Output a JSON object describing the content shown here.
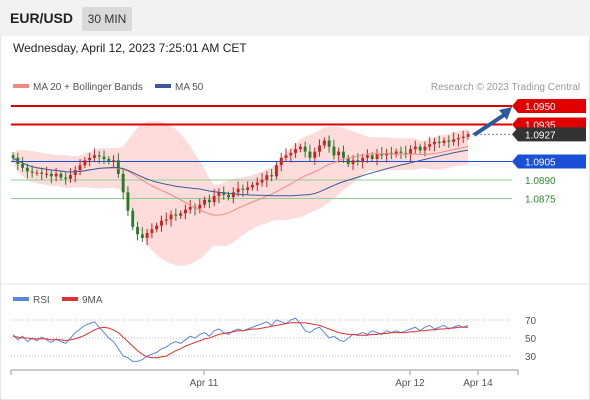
{
  "header": {
    "pair": "EUR/USD",
    "timeframe": "30 MIN"
  },
  "datetime": "Wednesday, April 12, 2023 7:25:01 AM CET",
  "legend": {
    "ma20_label": "MA 20 + Bollinger Bands",
    "ma50_label": "MA 50",
    "credit": "Research © 2023 Trading Central"
  },
  "rsi_legend": {
    "rsi_label": "RSI",
    "ma_label": "9MA"
  },
  "colors": {
    "resistance": "#e00000",
    "support": "#1a4fd6",
    "target": "#2f8a2f",
    "up": "#d02020",
    "down": "#2a7a2a",
    "ma20": "#f08a80",
    "ma50": "#3a5a9a",
    "band": "#ffd0d0",
    "rsi": "#5a86e0",
    "rsi_ma": "#e03030",
    "arrow": "#2c5aa0",
    "current": "#333333"
  },
  "chart_data": [
    {
      "type": "candlestick",
      "title": "EUR/USD",
      "ylim": [
        1.0835,
        1.0965
      ],
      "x_labels": [
        "Apr 11",
        "Apr 12",
        "Apr 14"
      ],
      "levels": [
        {
          "value": 1.095,
          "label": "1.0950",
          "kind": "resistance"
        },
        {
          "value": 1.0935,
          "label": "1.0935",
          "kind": "resistance"
        },
        {
          "value": 1.0927,
          "label": "1.0927",
          "kind": "current"
        },
        {
          "value": 1.0905,
          "label": "1.0905",
          "kind": "pivot"
        },
        {
          "value": 1.089,
          "label": "1.0890",
          "kind": "support"
        },
        {
          "value": 1.0875,
          "label": "1.0875",
          "kind": "support"
        }
      ],
      "close": [
        1.0908,
        1.0903,
        1.09,
        1.0897,
        1.0896,
        1.0896,
        1.0895,
        1.0895,
        1.0893,
        1.0895,
        1.0892,
        1.0891,
        1.0894,
        1.0898,
        1.0902,
        1.0906,
        1.0908,
        1.091,
        1.0909,
        1.0907,
        1.0905,
        1.0906,
        1.0895,
        1.088,
        1.0865,
        1.0852,
        1.0846,
        1.0843,
        1.0847,
        1.085,
        1.0853,
        1.0857,
        1.0858,
        1.0862,
        1.0861,
        1.0863,
        1.0866,
        1.0868,
        1.0867,
        1.087,
        1.0874,
        1.0872,
        1.0877,
        1.088,
        1.0878,
        1.0876,
        1.088,
        1.0883,
        1.0882,
        1.0884,
        1.0886,
        1.0888,
        1.089,
        1.0894,
        1.0893,
        1.0902,
        1.0908,
        1.091,
        1.0912,
        1.0915,
        1.0917,
        1.0913,
        1.0908,
        1.0913,
        1.0918,
        1.0922,
        1.0917,
        1.091,
        1.0913,
        1.0908,
        1.0903,
        1.0906,
        1.0905,
        1.0908,
        1.091,
        1.0907,
        1.0911,
        1.091,
        1.0912,
        1.0911,
        1.0913,
        1.0912,
        1.0911,
        1.0915,
        1.0917,
        1.0914,
        1.0917,
        1.0919,
        1.0921,
        1.092,
        1.0922,
        1.0921,
        1.0923,
        1.0924,
        1.0925,
        1.0927
      ]
    },
    {
      "type": "line",
      "title": "RSI",
      "ylim": [
        20,
        80
      ],
      "y_ticks": [
        70,
        50,
        30
      ],
      "series": [
        {
          "name": "RSI",
          "values": [
            54,
            48,
            52,
            46,
            50,
            47,
            51,
            48,
            45,
            49,
            46,
            44,
            50,
            56,
            60,
            64,
            66,
            68,
            62,
            56,
            50,
            46,
            38,
            30,
            28,
            24,
            24,
            26,
            30,
            32,
            34,
            38,
            40,
            44,
            46,
            44,
            48,
            52,
            50,
            54,
            56,
            52,
            58,
            60,
            56,
            54,
            58,
            60,
            58,
            60,
            62,
            64,
            66,
            68,
            64,
            70,
            68,
            66,
            70,
            72,
            66,
            58,
            56,
            60,
            62,
            56,
            50,
            52,
            48,
            46,
            50,
            54,
            54,
            56,
            54,
            58,
            56,
            54,
            58,
            56,
            58,
            56,
            58,
            60,
            62,
            58,
            62,
            64,
            60,
            62,
            64,
            60,
            62,
            64,
            62,
            64
          ]
        },
        {
          "name": "9MA",
          "values": [
            52,
            51,
            50,
            50,
            49,
            49,
            49,
            49,
            48,
            48,
            48,
            47,
            48,
            49,
            51,
            53,
            56,
            59,
            61,
            62,
            61,
            59,
            56,
            51,
            46,
            41,
            36,
            32,
            29,
            28,
            28,
            29,
            30,
            33,
            36,
            38,
            41,
            43,
            45,
            47,
            49,
            50,
            52,
            54,
            55,
            56,
            57,
            58,
            58,
            59,
            60,
            60,
            61,
            62,
            63,
            64,
            65,
            66,
            67,
            67,
            67,
            67,
            66,
            65,
            64,
            62,
            60,
            58,
            56,
            55,
            54,
            54,
            53,
            53,
            53,
            54,
            54,
            55,
            55,
            56,
            56,
            56,
            56,
            57,
            57,
            58,
            58,
            59,
            59,
            60,
            60,
            61,
            61,
            62,
            62,
            62
          ]
        }
      ]
    }
  ]
}
